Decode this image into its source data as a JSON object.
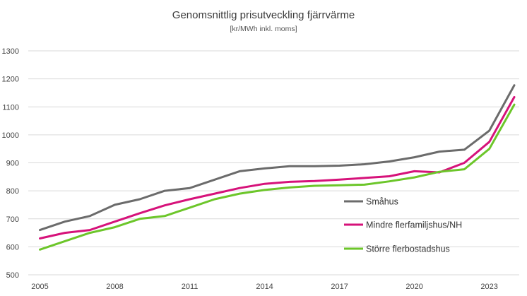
{
  "chart_data": {
    "type": "line",
    "title": "Genomsnittlig prisutveckling fjärrvärme",
    "subtitle": "[kr/MWh inkl. moms]",
    "xlabel": "",
    "ylabel": "",
    "ylim": [
      500,
      1300
    ],
    "yticks": [
      500,
      600,
      700,
      800,
      900,
      1000,
      1100,
      1200,
      1300
    ],
    "xticks": [
      2005,
      2008,
      2011,
      2014,
      2017,
      2020,
      2023
    ],
    "x": [
      2005,
      2006,
      2007,
      2008,
      2009,
      2010,
      2011,
      2012,
      2013,
      2014,
      2015,
      2016,
      2017,
      2018,
      2019,
      2020,
      2021,
      2022,
      2023,
      2024
    ],
    "grid": true,
    "legend_position": "right-inside",
    "series": [
      {
        "name": "Småhus",
        "color": "#6b6b6b",
        "values": [
          660,
          690,
          710,
          750,
          770,
          800,
          810,
          840,
          870,
          880,
          888,
          888,
          890,
          895,
          905,
          920,
          940,
          947,
          1015,
          1177
        ]
      },
      {
        "name": "Mindre flerfamiljshus/NH",
        "color": "#d6127a",
        "values": [
          630,
          650,
          660,
          690,
          720,
          748,
          770,
          790,
          810,
          825,
          832,
          835,
          840,
          846,
          852,
          870,
          866,
          900,
          975,
          1135
        ]
      },
      {
        "name": "Större flerbostadshus",
        "color": "#6cc62a",
        "values": [
          590,
          620,
          650,
          670,
          700,
          710,
          740,
          770,
          790,
          803,
          812,
          818,
          820,
          822,
          834,
          848,
          868,
          877,
          950,
          1108
        ]
      }
    ]
  }
}
